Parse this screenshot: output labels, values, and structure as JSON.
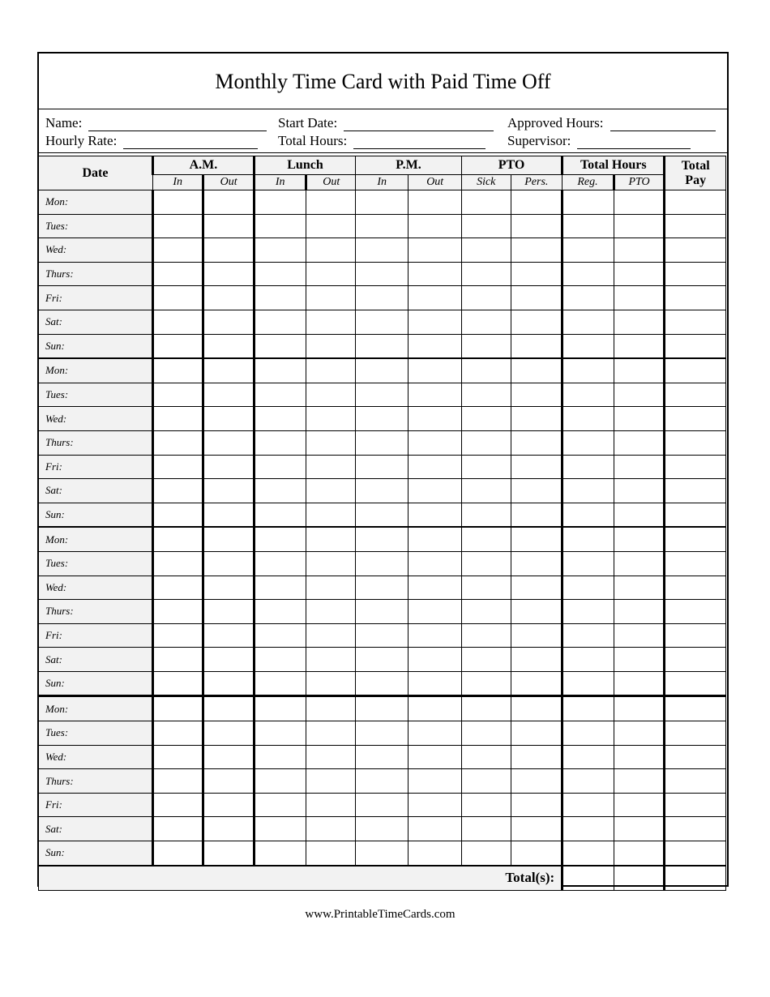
{
  "title": "Monthly Time Card with Paid Time Off",
  "fields": {
    "name": "Name:",
    "start_date": "Start Date:",
    "approved_hours": "Approved Hours:",
    "hourly_rate": "Hourly Rate:",
    "total_hours": "Total Hours:",
    "supervisor": "Supervisor:"
  },
  "headers": {
    "date": "Date",
    "am": "A.M.",
    "lunch": "Lunch",
    "pm": "P.M.",
    "pto": "PTO",
    "total_hours": "Total Hours",
    "total_pay_1": "Total",
    "total_pay_2": "Pay",
    "sub": [
      "In",
      "Out",
      "In",
      "Out",
      "In",
      "Out",
      "Sick",
      "Pers.",
      "Reg.",
      "PTO"
    ]
  },
  "days": [
    "Mon:",
    "Tues:",
    "Wed:",
    "Thurs:",
    "Fri:",
    "Sat:",
    "Sun:",
    "Mon:",
    "Tues:",
    "Wed:",
    "Thurs:",
    "Fri:",
    "Sat:",
    "Sun:",
    "Mon:",
    "Tues:",
    "Wed:",
    "Thurs:",
    "Fri:",
    "Sat:",
    "Sun:",
    "Mon:",
    "Tues:",
    "Wed:",
    "Thurs:",
    "Fri:",
    "Sat:",
    "Sun:"
  ],
  "totals_label": "Total(s):",
  "footer": "www.PrintableTimeCards.com"
}
